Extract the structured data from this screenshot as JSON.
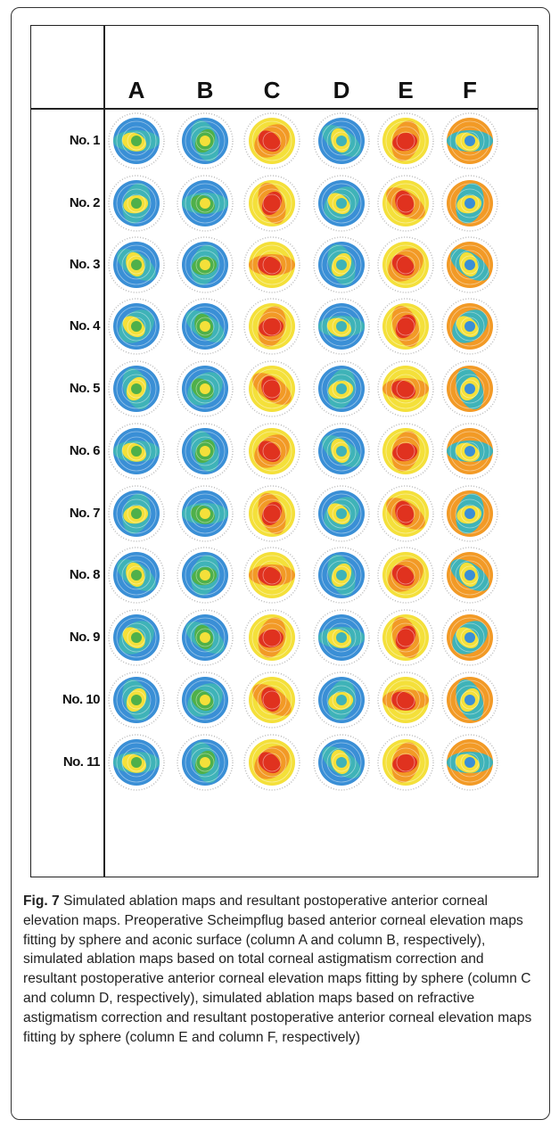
{
  "columns": [
    "A",
    "B",
    "C",
    "D",
    "E",
    "F"
  ],
  "rows": [
    "No. 1",
    "No. 2",
    "No. 3",
    "No. 4",
    "No. 5",
    "No. 6",
    "No. 7",
    "No. 8",
    "No. 9",
    "No. 10",
    "No. 11"
  ],
  "caption": {
    "label": "Fig. 7",
    "text": " Simulated ablation maps and resultant postoperative anterior corneal elevation maps. Preoperative Scheimpflug based anterior corneal elevation maps fitting by sphere and aconic surface (column A and column B, respectively), simulated ablation maps based on total corneal astigmatism correction and resultant postoperative anterior corneal elevation maps fitting by sphere (column C and column D, respectively), simulated ablation maps based on refractive astigmatism correction and resultant postoperative anterior corneal elevation maps fitting by sphere (column E and column F, respectively)"
  },
  "map_palette": {
    "red": "#e0321f",
    "orange": "#f29a26",
    "yellow": "#f4e03a",
    "green": "#4fb04a",
    "teal": "#3fb3b8",
    "blue": "#3a8fd6",
    "purple": "#6a3fa0"
  }
}
